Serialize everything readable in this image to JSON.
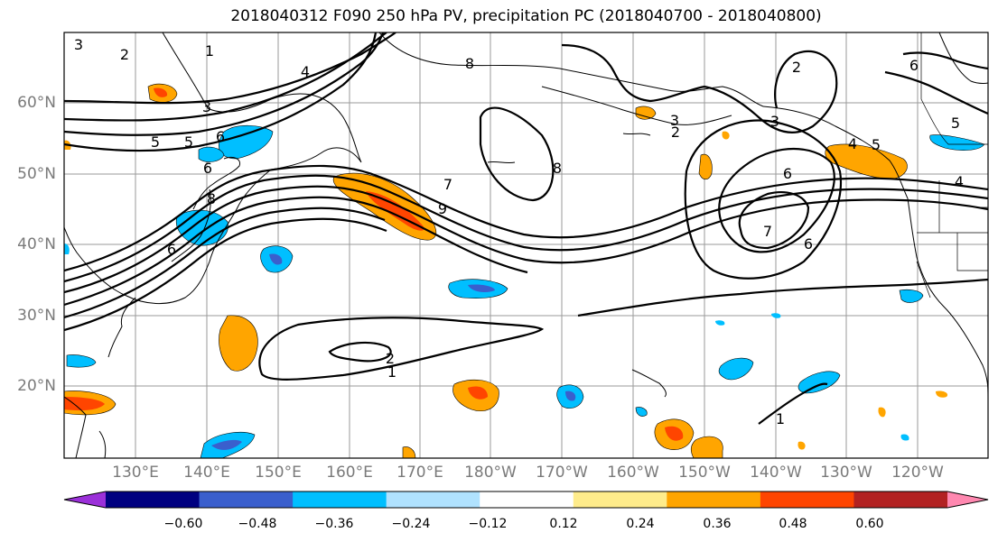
{
  "title": "2018040312 F090 250 hPa PV, precipitation PC (2018040700 - 2018040800)",
  "lat_labels": [
    "60°N",
    "50°N",
    "40°N",
    "30°N",
    "20°N"
  ],
  "lon_labels": [
    "130°E",
    "140°E",
    "150°E",
    "160°E",
    "170°E",
    "180°W",
    "170°W",
    "160°W",
    "150°W",
    "140°W",
    "130°W",
    "120°W"
  ],
  "colorbar": {
    "colors": [
      "#9b30d9",
      "#000080",
      "#3a5fcd",
      "#00bfff",
      "#b0e2ff",
      "#ffffff",
      "#ffec8b",
      "#ffa500",
      "#ff4500",
      "#b22222",
      "#ff88b0"
    ],
    "tick_labels": [
      "−0.60",
      "−0.48",
      "−0.36",
      "−0.24",
      "−0.12",
      "0.12",
      "0.24",
      "0.36",
      "0.48",
      "0.60"
    ]
  },
  "contour_labels": [
    "3",
    "2",
    "1",
    "3",
    "4",
    "5",
    "6",
    "5",
    "6",
    "8",
    "9",
    "6",
    "7",
    "8",
    "8",
    "2",
    "3",
    "2",
    "3",
    "4",
    "5",
    "6",
    "7",
    "6",
    "2",
    "1",
    "5",
    "4",
    "1",
    "6"
  ]
}
